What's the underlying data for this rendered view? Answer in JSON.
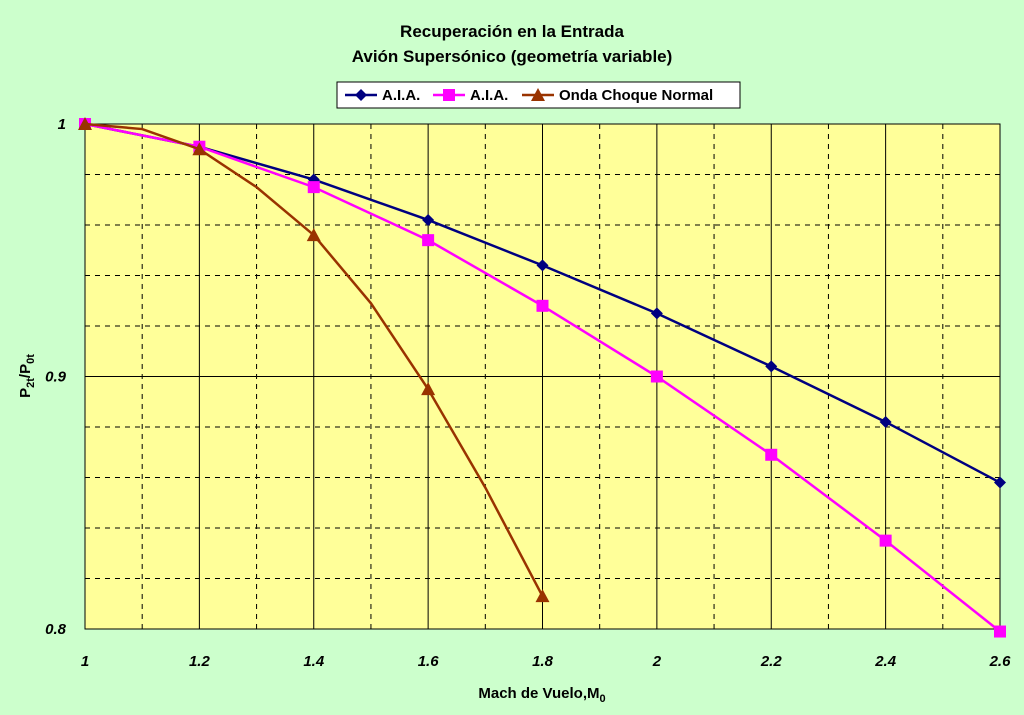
{
  "chart_data": {
    "type": "line",
    "title": "Recuperación en la Entrada",
    "subtitle": "Avión Supersónico (geometría variable)",
    "xlabel_main": "Mach de Vuelo,M",
    "xlabel_sub": "0",
    "ylabel_main": "P",
    "ylabel_sub1": "2t",
    "ylabel_mid": "/P",
    "ylabel_sub2": "0t",
    "xlim": [
      1,
      2.6
    ],
    "ylim": [
      0.8,
      1.0
    ],
    "x_ticks": [
      "1",
      "1.2",
      "1.4",
      "1.6",
      "1.8",
      "2",
      "2.2",
      "2.4",
      "2.6"
    ],
    "y_ticks": [
      "0.8",
      "0.9",
      "1"
    ],
    "grid": true,
    "legend_position": "top-center",
    "series": [
      {
        "name": "A.I.A.",
        "color": "#000080",
        "marker": "diamond",
        "x": [
          1,
          1.2,
          1.4,
          1.6,
          1.8,
          2.0,
          2.2,
          2.4,
          2.6
        ],
        "values": [
          1.0,
          0.991,
          0.978,
          0.962,
          0.944,
          0.925,
          0.904,
          0.882,
          0.858
        ]
      },
      {
        "name": "A.I.A.",
        "color": "#ff00ff",
        "marker": "square",
        "x": [
          1,
          1.2,
          1.4,
          1.6,
          1.8,
          2.0,
          2.2,
          2.4,
          2.6
        ],
        "values": [
          1.0,
          0.991,
          0.975,
          0.954,
          0.928,
          0.9,
          0.869,
          0.835,
          0.799
        ]
      },
      {
        "name": "Onda Choque Normal",
        "color": "#993300",
        "marker": "triangle",
        "x": [
          1,
          1.1,
          1.2,
          1.3,
          1.4,
          1.5,
          1.6,
          1.7,
          1.8
        ],
        "values": [
          1.0,
          0.998,
          0.99,
          0.975,
          0.956,
          0.929,
          0.895,
          0.856,
          0.813
        ],
        "marker_points": [
          0,
          2,
          4,
          6,
          8
        ]
      }
    ]
  }
}
